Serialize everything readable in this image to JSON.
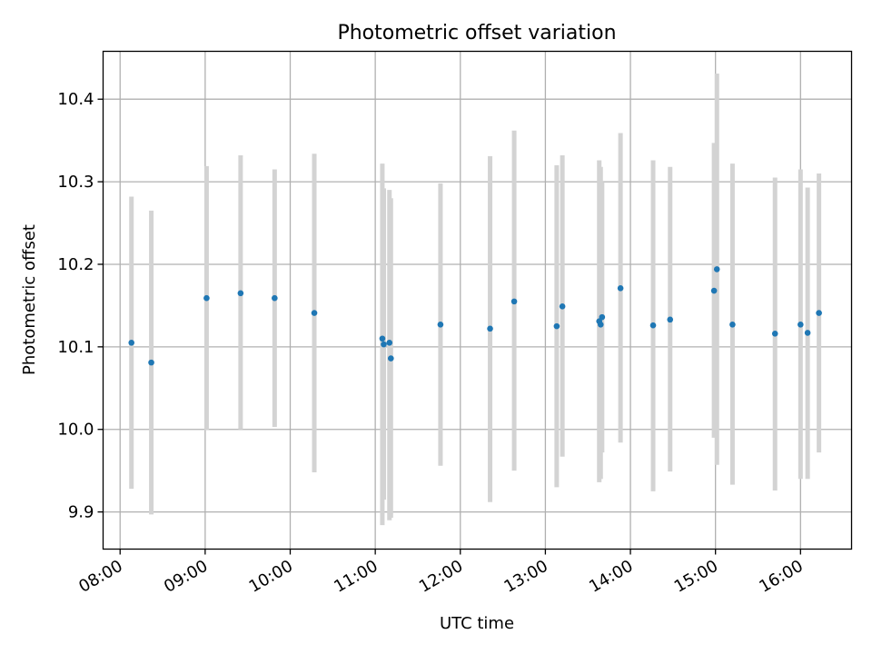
{
  "chart_data": {
    "type": "scatter",
    "title": "Photometric offset variation",
    "xlabel": "UTC time",
    "ylabel": "Photometric offset",
    "x_ticks": [
      "08:00",
      "09:00",
      "10:00",
      "11:00",
      "12:00",
      "13:00",
      "14:00",
      "15:00",
      "16:00"
    ],
    "y_ticks": [
      9.9,
      10.0,
      10.1,
      10.2,
      10.3,
      10.4
    ],
    "xlim": [
      "07:48",
      "16:36"
    ],
    "ylim": [
      9.855,
      10.458
    ],
    "grid": true,
    "errorbar_color": "#d3d3d3",
    "point_color": "#1f77b4",
    "points": [
      {
        "t": "08:08",
        "y": 10.105,
        "lo": 9.928,
        "hi": 10.282
      },
      {
        "t": "08:22",
        "y": 10.081,
        "lo": 9.897,
        "hi": 10.265
      },
      {
        "t": "09:01",
        "y": 10.159,
        "lo": 9.999,
        "hi": 10.319
      },
      {
        "t": "09:25",
        "y": 10.165,
        "lo": 10.0,
        "hi": 10.332
      },
      {
        "t": "09:49",
        "y": 10.159,
        "lo": 10.003,
        "hi": 10.315
      },
      {
        "t": "10:17",
        "y": 10.141,
        "lo": 9.948,
        "hi": 10.334
      },
      {
        "t": "11:05",
        "y": 10.11,
        "lo": 9.884,
        "hi": 10.322
      },
      {
        "t": "11:06",
        "y": 10.103,
        "lo": 9.915,
        "hi": 10.292
      },
      {
        "t": "11:10",
        "y": 10.105,
        "lo": 9.89,
        "hi": 10.29
      },
      {
        "t": "11:11",
        "y": 10.086,
        "lo": 9.893,
        "hi": 10.28
      },
      {
        "t": "11:46",
        "y": 10.127,
        "lo": 9.956,
        "hi": 10.298
      },
      {
        "t": "12:21",
        "y": 10.122,
        "lo": 9.912,
        "hi": 10.331
      },
      {
        "t": "12:38",
        "y": 10.155,
        "lo": 9.95,
        "hi": 10.362
      },
      {
        "t": "13:08",
        "y": 10.125,
        "lo": 9.93,
        "hi": 10.32
      },
      {
        "t": "13:12",
        "y": 10.149,
        "lo": 9.967,
        "hi": 10.332
      },
      {
        "t": "13:38",
        "y": 10.131,
        "lo": 9.936,
        "hi": 10.326
      },
      {
        "t": "13:39",
        "y": 10.127,
        "lo": 9.94,
        "hi": 10.318
      },
      {
        "t": "13:40",
        "y": 10.136,
        "lo": 9.972,
        "hi": 10.3
      },
      {
        "t": "13:53",
        "y": 10.171,
        "lo": 9.984,
        "hi": 10.359
      },
      {
        "t": "14:16",
        "y": 10.126,
        "lo": 9.925,
        "hi": 10.326
      },
      {
        "t": "14:28",
        "y": 10.133,
        "lo": 9.949,
        "hi": 10.318
      },
      {
        "t": "14:59",
        "y": 10.168,
        "lo": 9.99,
        "hi": 10.347
      },
      {
        "t": "15:01",
        "y": 10.194,
        "lo": 9.957,
        "hi": 10.431
      },
      {
        "t": "15:12",
        "y": 10.127,
        "lo": 9.933,
        "hi": 10.322
      },
      {
        "t": "15:42",
        "y": 10.116,
        "lo": 9.926,
        "hi": 10.305
      },
      {
        "t": "16:00",
        "y": 10.127,
        "lo": 9.94,
        "hi": 10.315
      },
      {
        "t": "16:05",
        "y": 10.117,
        "lo": 9.94,
        "hi": 10.293
      },
      {
        "t": "16:13",
        "y": 10.141,
        "lo": 9.972,
        "hi": 10.31
      }
    ]
  }
}
